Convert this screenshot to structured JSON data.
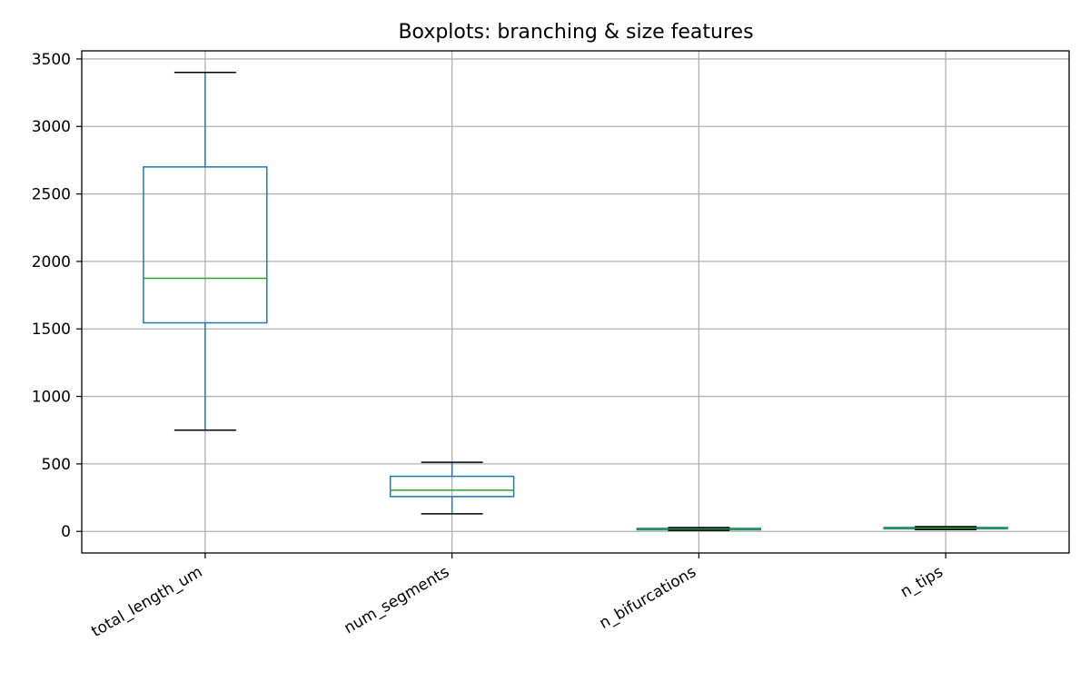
{
  "chart_data": {
    "type": "box",
    "title": "Boxplots: branching & size features",
    "xlabel": "",
    "ylabel": "",
    "ylim": [
      -160,
      3560
    ],
    "yticks": [
      0,
      500,
      1000,
      1500,
      2000,
      2500,
      3000,
      3500
    ],
    "grid": true,
    "box_color": "#1f77b4",
    "median_color": "#2ca02c",
    "whisker_cap_color": "#000000",
    "grid_color": "#b0b0b0",
    "categories": [
      "total_length_um",
      "num_segments",
      "n_bifurcations",
      "n_tips"
    ],
    "boxes": [
      {
        "label": "total_length_um",
        "whisker_low": 750,
        "q1": 1545,
        "median": 1875,
        "q3": 2700,
        "whisker_high": 3400
      },
      {
        "label": "num_segments",
        "whisker_low": 130,
        "q1": 258,
        "median": 305,
        "q3": 408,
        "whisker_high": 512
      },
      {
        "label": "n_bifurcations",
        "whisker_low": 7,
        "q1": 12,
        "median": 16,
        "q3": 22,
        "whisker_high": 28
      },
      {
        "label": "n_tips",
        "whisker_low": 13,
        "q1": 19,
        "median": 24,
        "q3": 29,
        "whisker_high": 35
      }
    ]
  }
}
